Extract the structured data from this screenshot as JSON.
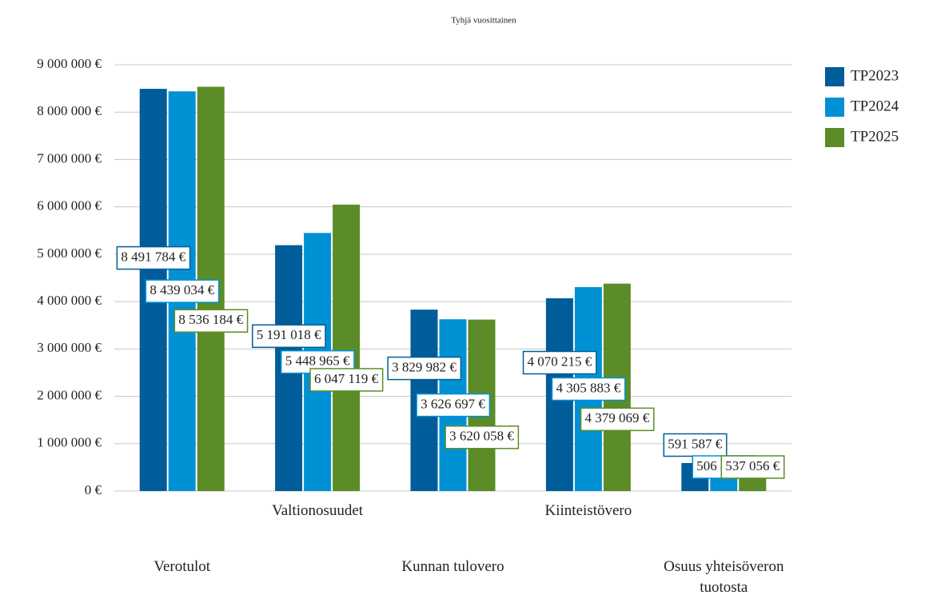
{
  "chart_data": {
    "type": "bar",
    "title": "Tyhjä vuosittainen",
    "categories": [
      "Verotulot",
      "Valtionosuudet",
      "Kunnan tulovero",
      "Kiinteistövero",
      "Osuus yhteisöveron tuotosta"
    ],
    "series": [
      {
        "name": "TP2023",
        "color": "#005d99",
        "values": [
          8491784,
          5191018,
          3829982,
          4070215,
          591587
        ],
        "value_labels": [
          "8 491 784 €",
          "5 191 018 €",
          "3 829 982 €",
          "4 070 215 €",
          "591 587 €"
        ]
      },
      {
        "name": "TP2024",
        "color": "#0091d5",
        "values": [
          8439034,
          5448965,
          3626697,
          4305883,
          506453
        ],
        "value_labels": [
          "8 439 034 €",
          "5 448 965 €",
          "3 626 697 €",
          "4 305 883 €",
          "506 453 €"
        ]
      },
      {
        "name": "TP2025",
        "color": "#5b8c27",
        "values": [
          8536184,
          6047119,
          3620058,
          4379069,
          537056
        ],
        "value_labels": [
          "8 536 184 €",
          "6 047 119 €",
          "3 620 058 €",
          "4 379 069 €",
          "537 056 €"
        ]
      }
    ],
    "ylim": [
      0,
      9000000
    ],
    "yticks": [
      {
        "value": 0,
        "label": "0 €"
      },
      {
        "value": 1000000,
        "label": "1 000 000 €"
      },
      {
        "value": 2000000,
        "label": "2 000 000 €"
      },
      {
        "value": 3000000,
        "label": "3 000 000 €"
      },
      {
        "value": 4000000,
        "label": "4 000 000 €"
      },
      {
        "value": 5000000,
        "label": "5 000 000 €"
      },
      {
        "value": 6000000,
        "label": "6 000 000 €"
      },
      {
        "value": 7000000,
        "label": "7 000 000 €"
      },
      {
        "value": 8000000,
        "label": "8 000 000 €"
      },
      {
        "value": 9000000,
        "label": "9 000 000 €"
      }
    ],
    "grid": true,
    "legend": "right"
  }
}
